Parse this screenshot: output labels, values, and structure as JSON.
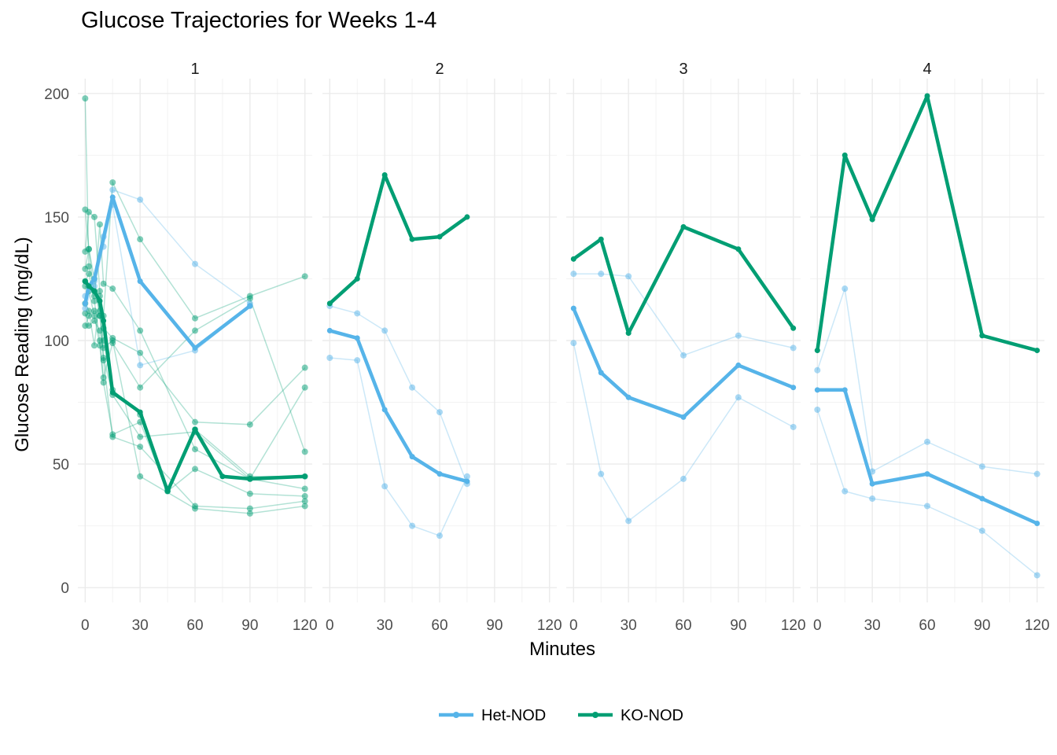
{
  "chart_data": {
    "type": "line",
    "title": "Glucose Trajectories for Weeks 1-4",
    "xlabel": "Minutes",
    "ylabel": "Glucose Reading (mg/dL)",
    "xlim": [
      -4,
      124
    ],
    "ylim": [
      -6,
      206
    ],
    "x_ticks": [
      0,
      30,
      60,
      90,
      120
    ],
    "y_ticks": [
      0,
      50,
      100,
      150,
      200
    ],
    "grid": true,
    "legend_position": "bottom",
    "colors": {
      "Het-NOD": "#56B4E9",
      "KO-NOD": "#009E73"
    },
    "legend": [
      {
        "name": "Het-NOD",
        "color": "#56B4E9"
      },
      {
        "name": "KO-NOD",
        "color": "#009E73"
      }
    ],
    "panels": [
      {
        "label": "1",
        "individual": [
          {
            "group": "KO-NOD",
            "x": [
              0,
              2,
              5,
              8,
              10,
              15,
              30,
              45,
              60,
              90,
              120
            ],
            "y": [
              198,
              130,
              120,
              112,
              100,
              80,
              70,
              40,
              64,
              45,
              45
            ]
          },
          {
            "group": "KO-NOD",
            "x": [
              0,
              2,
              5,
              8,
              10,
              15,
              30,
              60,
              90,
              120
            ],
            "y": [
              153,
              137,
              125,
              110,
              105,
              101,
              95,
              67,
              66,
              89
            ]
          },
          {
            "group": "KO-NOD",
            "x": [
              0,
              2,
              5,
              8,
              10,
              15,
              30,
              60,
              90,
              120
            ],
            "y": [
              136,
              152,
              150,
              120,
              110,
              164,
              141,
              109,
              118,
              126
            ]
          },
          {
            "group": "KO-NOD",
            "x": [
              0,
              2,
              5,
              8,
              10,
              15,
              30,
              60,
              90,
              120
            ],
            "y": [
              129,
              137,
              118,
              147,
              123,
              121,
              104,
              56,
              44,
              81
            ]
          },
          {
            "group": "KO-NOD",
            "x": [
              0,
              2,
              5,
              8,
              10,
              15,
              30,
              60,
              90,
              120
            ],
            "y": [
              124,
              127,
              116,
              100,
              85,
              99,
              81,
              104,
              117,
              55
            ]
          },
          {
            "group": "KO-NOD",
            "x": [
              0,
              2,
              5,
              8,
              10,
              15,
              30,
              45,
              60,
              90,
              120
            ],
            "y": [
              122,
              120,
              110,
              98,
              83,
              62,
              67,
              39,
              48,
              38,
              37
            ]
          },
          {
            "group": "KO-NOD",
            "x": [
              0,
              2,
              5,
              8,
              10,
              15,
              30,
              60,
              90,
              120
            ],
            "y": [
              115,
              112,
              98,
              118,
              92,
              61,
              57,
              33,
              32,
              35
            ]
          },
          {
            "group": "KO-NOD",
            "x": [
              0,
              2,
              5,
              8,
              10,
              15,
              30,
              60,
              90,
              120
            ],
            "y": [
              111,
              106,
              108,
              104,
              97,
              100,
              45,
              32,
              30,
              33
            ]
          },
          {
            "group": "KO-NOD",
            "x": [
              0,
              2,
              5,
              8,
              10,
              15,
              30,
              60,
              90,
              120
            ],
            "y": [
              106,
              110,
              112,
              110,
              93,
              78,
              61,
              63,
              44,
              40
            ]
          },
          {
            "group": "Het-NOD",
            "x": [
              0,
              5,
              10,
              15,
              30,
              60,
              90
            ],
            "y": [
              113,
              124,
              142,
              161,
              157,
              131,
              115
            ]
          },
          {
            "group": "Het-NOD",
            "x": [
              0,
              5,
              10,
              15,
              30,
              60,
              90
            ],
            "y": [
              118,
              122,
              138,
              155,
              90,
              96,
              114
            ]
          }
        ],
        "mean": [
          {
            "group": "Het-NOD",
            "x": [
              0,
              2,
              5,
              15,
              30,
              60,
              90
            ],
            "y": [
              115,
              122,
              125,
              158,
              124,
              97,
              114
            ]
          },
          {
            "group": "KO-NOD",
            "x": [
              0,
              2,
              5,
              8,
              10,
              15,
              30,
              45,
              60,
              75,
              90,
              120
            ],
            "y": [
              124,
              122,
              120,
              116,
              108,
              79,
              71,
              39,
              64,
              45,
              44,
              45
            ]
          }
        ]
      },
      {
        "label": "2",
        "individual": [
          {
            "group": "Het-NOD",
            "x": [
              0,
              15,
              30,
              45,
              60,
              75
            ],
            "y": [
              114,
              111,
              104,
              81,
              71,
              42
            ]
          },
          {
            "group": "Het-NOD",
            "x": [
              0,
              15,
              30,
              45,
              60,
              75
            ],
            "y": [
              93,
              92,
              41,
              25,
              21,
              45
            ]
          }
        ],
        "mean": [
          {
            "group": "Het-NOD",
            "x": [
              0,
              15,
              30,
              45,
              60,
              75
            ],
            "y": [
              104,
              101,
              72,
              53,
              46,
              43
            ]
          },
          {
            "group": "KO-NOD",
            "x": [
              0,
              15,
              30,
              45,
              60,
              75
            ],
            "y": [
              115,
              125,
              167,
              141,
              142,
              150
            ]
          }
        ]
      },
      {
        "label": "3",
        "individual": [
          {
            "group": "Het-NOD",
            "x": [
              0,
              15,
              30,
              60,
              90,
              120
            ],
            "y": [
              127,
              127,
              126,
              94,
              102,
              97
            ]
          },
          {
            "group": "Het-NOD",
            "x": [
              0,
              15,
              30,
              60,
              90,
              120
            ],
            "y": [
              99,
              46,
              27,
              44,
              77,
              65
            ]
          }
        ],
        "mean": [
          {
            "group": "Het-NOD",
            "x": [
              0,
              15,
              30,
              60,
              90,
              120
            ],
            "y": [
              113,
              87,
              77,
              69,
              90,
              81
            ]
          },
          {
            "group": "KO-NOD",
            "x": [
              0,
              15,
              30,
              60,
              90,
              120
            ],
            "y": [
              133,
              141,
              103,
              146,
              137,
              105
            ]
          }
        ]
      },
      {
        "label": "4",
        "individual": [
          {
            "group": "Het-NOD",
            "x": [
              0,
              15,
              30,
              60,
              90,
              120
            ],
            "y": [
              88,
              121,
              47,
              59,
              49,
              46
            ]
          },
          {
            "group": "Het-NOD",
            "x": [
              0,
              15,
              30,
              60,
              90,
              120
            ],
            "y": [
              72,
              39,
              36,
              33,
              23,
              5
            ]
          }
        ],
        "mean": [
          {
            "group": "Het-NOD",
            "x": [
              0,
              15,
              30,
              60,
              90,
              120
            ],
            "y": [
              80,
              80,
              42,
              46,
              36,
              26
            ]
          },
          {
            "group": "KO-NOD",
            "x": [
              0,
              15,
              30,
              60,
              90,
              120
            ],
            "y": [
              96,
              175,
              149,
              199,
              102,
              96
            ]
          }
        ]
      }
    ]
  }
}
